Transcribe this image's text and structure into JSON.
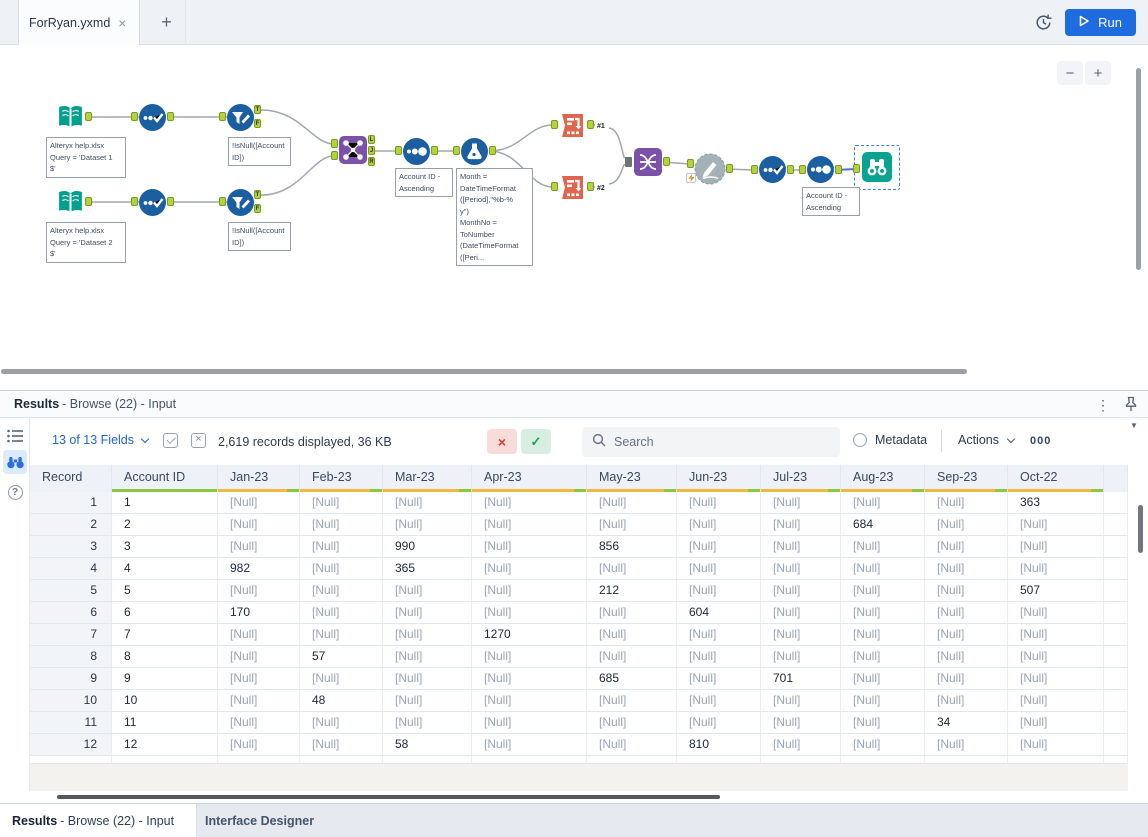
{
  "topbar": {
    "tab_title": "ForRyan.yxmd",
    "close_glyph": "×",
    "new_tab_glyph": "+",
    "run_label": "Run"
  },
  "canvas": {
    "zoom_out_glyph": "−",
    "zoom_in_glyph": "+",
    "annotations": {
      "input1": "Alteryx help.xlsx\nQuery = 'Dataset 1\n$'",
      "input2": "Alteryx help.xlsx\nQuery = 'Dataset 2\n$'",
      "filter1": "!IsNull([Account\nID])",
      "filter2": "!IsNull([Account\nID])",
      "sort1": "Account ID -\nAscending",
      "formula": "Month =\nDateTimeFormat\n([Period],\"%b-%\ny\")\nMonthNo =\nToNumber\n(DateTimeFormat\n([Peri...",
      "sort2": "Account ID -\nAscending"
    },
    "labels": {
      "conn1": "#1",
      "conn2": "#2",
      "t": "T",
      "f": "F",
      "l": "L",
      "j": "J",
      "r": "R"
    }
  },
  "results": {
    "header": {
      "title": "Results",
      "subtitle": "- Browse (22) - Input"
    },
    "toolbar": {
      "fields": "13 of 13 Fields",
      "records": "2,619 records displayed, 36 KB",
      "search_placeholder": "Search",
      "metadata": "Metadata",
      "actions": "Actions",
      "counter": "000"
    },
    "table": {
      "columns": [
        "Record",
        "Account ID",
        "Jan-23",
        "Feb-23",
        "Mar-23",
        "Apr-23",
        "May-23",
        "Jun-23",
        "Jul-23",
        "Aug-23",
        "Sep-23",
        "Oct-22"
      ],
      "rows": [
        [
          "1",
          "1",
          "[Null]",
          "[Null]",
          "[Null]",
          "[Null]",
          "[Null]",
          "[Null]",
          "[Null]",
          "[Null]",
          "[Null]",
          "363"
        ],
        [
          "2",
          "2",
          "[Null]",
          "[Null]",
          "[Null]",
          "[Null]",
          "[Null]",
          "[Null]",
          "[Null]",
          "684",
          "[Null]",
          "[Null]"
        ],
        [
          "3",
          "3",
          "[Null]",
          "[Null]",
          "990",
          "[Null]",
          "856",
          "[Null]",
          "[Null]",
          "[Null]",
          "[Null]",
          "[Null]"
        ],
        [
          "4",
          "4",
          "982",
          "[Null]",
          "365",
          "[Null]",
          "[Null]",
          "[Null]",
          "[Null]",
          "[Null]",
          "[Null]",
          "[Null]"
        ],
        [
          "5",
          "5",
          "[Null]",
          "[Null]",
          "[Null]",
          "[Null]",
          "212",
          "[Null]",
          "[Null]",
          "[Null]",
          "[Null]",
          "507"
        ],
        [
          "6",
          "6",
          "170",
          "[Null]",
          "[Null]",
          "[Null]",
          "[Null]",
          "604",
          "[Null]",
          "[Null]",
          "[Null]",
          "[Null]"
        ],
        [
          "7",
          "7",
          "[Null]",
          "[Null]",
          "[Null]",
          "1270",
          "[Null]",
          "[Null]",
          "[Null]",
          "[Null]",
          "[Null]",
          "[Null]"
        ],
        [
          "8",
          "8",
          "[Null]",
          "57",
          "[Null]",
          "[Null]",
          "[Null]",
          "[Null]",
          "[Null]",
          "[Null]",
          "[Null]",
          "[Null]"
        ],
        [
          "9",
          "9",
          "[Null]",
          "[Null]",
          "[Null]",
          "[Null]",
          "685",
          "[Null]",
          "701",
          "[Null]",
          "[Null]",
          "[Null]"
        ],
        [
          "10",
          "10",
          "[Null]",
          "48",
          "[Null]",
          "[Null]",
          "[Null]",
          "[Null]",
          "[Null]",
          "[Null]",
          "[Null]",
          "[Null]"
        ],
        [
          "11",
          "11",
          "[Null]",
          "[Null]",
          "[Null]",
          "[Null]",
          "[Null]",
          "[Null]",
          "[Null]",
          "[Null]",
          "34",
          "[Null]"
        ],
        [
          "12",
          "12",
          "[Null]",
          "[Null]",
          "58",
          "[Null]",
          "[Null]",
          "810",
          "[Null]",
          "[Null]",
          "[Null]",
          "[Null]"
        ]
      ]
    },
    "bottom_tabs": [
      {
        "label_bold": "Results",
        "label_rest": "- Browse (22) - Input"
      },
      {
        "label": "Interface Designer"
      }
    ]
  },
  "colors": {
    "accent_blue": "#1f6be0",
    "tool_blue": "#1b5fa0",
    "tool_teal": "#00a18c",
    "tool_purple": "#7b52a8",
    "tool_orange": "#e0654e",
    "anchor_green": "#b3d23c",
    "header_amber": "#f2b93f",
    "header_green": "#8dc63f",
    "null_gray": "#9aa4b2"
  }
}
